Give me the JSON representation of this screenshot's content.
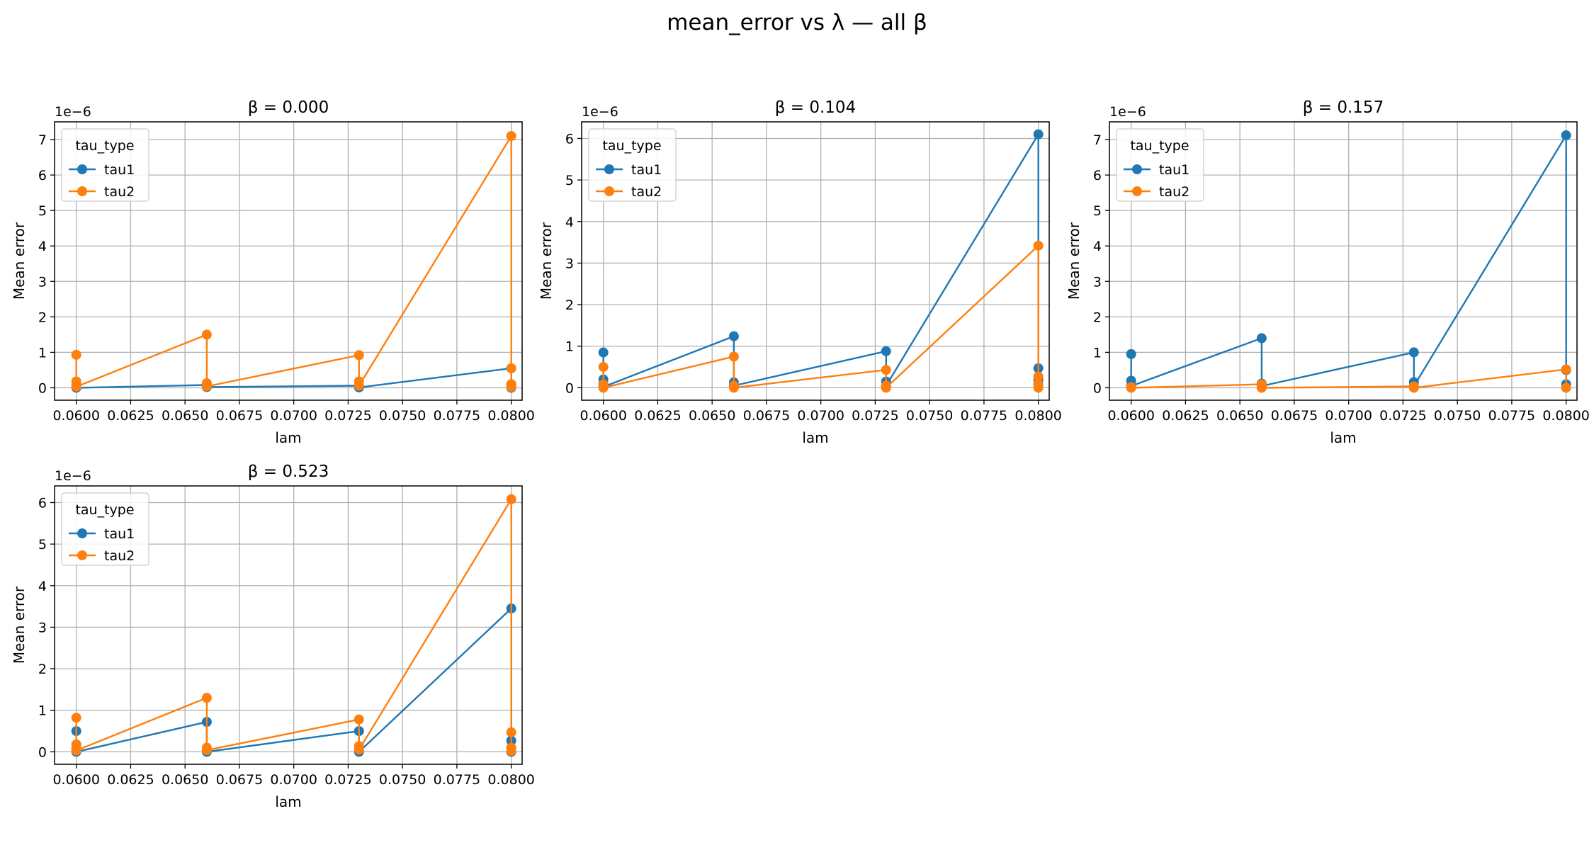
{
  "figure": {
    "title": "mean_error vs λ — all β"
  },
  "chart_data": [
    {
      "type": "line",
      "title": "β = 0.000",
      "xlabel": "lam",
      "ylabel": "Mean error",
      "offset_text": "1e−6",
      "xlim": [
        0.059,
        0.0805
      ],
      "ylim": [
        -0.35,
        7.5
      ],
      "xticks": [
        "0.0600",
        "0.0625",
        "0.0650",
        "0.0675",
        "0.0700",
        "0.0725",
        "0.0750",
        "0.0775",
        "0.0800"
      ],
      "yticks": [
        "0",
        "1",
        "2",
        "3",
        "4",
        "5",
        "6",
        "7"
      ],
      "grid": true,
      "legend": {
        "title": "tau_type",
        "placement": "top-left"
      },
      "series": [
        {
          "name": "tau1",
          "color": "#1f77b4",
          "x": [
            0.06,
            0.066,
            0.066,
            0.073,
            0.073,
            0.08,
            0.08,
            0.08
          ],
          "y": [
            0.0,
            0.08,
            0.02,
            0.06,
            0.01,
            0.55,
            0.1,
            0.0
          ]
        },
        {
          "name": "tau2",
          "color": "#ff7f0e",
          "x": [
            0.06,
            0.06,
            0.06,
            0.06,
            0.066,
            0.066,
            0.066,
            0.073,
            0.073,
            0.073,
            0.08,
            0.08,
            0.08,
            0.08
          ],
          "y": [
            0.93,
            0.18,
            0.08,
            0.03,
            1.5,
            0.13,
            0.04,
            0.92,
            0.18,
            0.06,
            7.1,
            0.55,
            0.1,
            0.02
          ]
        }
      ]
    },
    {
      "type": "line",
      "title": "β = 0.104",
      "xlabel": "lam",
      "ylabel": "Mean error",
      "offset_text": "1e−6",
      "xlim": [
        0.059,
        0.0805
      ],
      "ylim": [
        -0.3,
        6.4
      ],
      "xticks": [
        "0.0600",
        "0.0625",
        "0.0650",
        "0.0675",
        "0.0700",
        "0.0725",
        "0.0750",
        "0.0775",
        "0.0800"
      ],
      "yticks": [
        "0",
        "1",
        "2",
        "3",
        "4",
        "5",
        "6"
      ],
      "grid": true,
      "legend": {
        "title": "tau_type",
        "placement": "top-left"
      },
      "series": [
        {
          "name": "tau1",
          "color": "#1f77b4",
          "x": [
            0.06,
            0.06,
            0.06,
            0.06,
            0.066,
            0.066,
            0.066,
            0.073,
            0.073,
            0.073,
            0.08,
            0.08,
            0.08,
            0.08
          ],
          "y": [
            0.85,
            0.2,
            0.1,
            0.02,
            1.24,
            0.13,
            0.05,
            0.88,
            0.15,
            0.05,
            6.1,
            0.47,
            0.2,
            0.1
          ]
        },
        {
          "name": "tau2",
          "color": "#ff7f0e",
          "x": [
            0.06,
            0.06,
            0.06,
            0.066,
            0.066,
            0.066,
            0.073,
            0.073,
            0.073,
            0.08,
            0.08,
            0.08,
            0.08
          ],
          "y": [
            0.5,
            0.08,
            0.0,
            0.75,
            0.05,
            0.0,
            0.43,
            0.05,
            0.0,
            3.42,
            0.27,
            0.08,
            0.0
          ]
        }
      ]
    },
    {
      "type": "line",
      "title": "β = 0.157",
      "xlabel": "lam",
      "ylabel": "Mean error",
      "offset_text": "1e−6",
      "xlim": [
        0.059,
        0.0805
      ],
      "ylim": [
        -0.35,
        7.5
      ],
      "xticks": [
        "0.0600",
        "0.0625",
        "0.0650",
        "0.0675",
        "0.0700",
        "0.0725",
        "0.0750",
        "0.0775",
        "0.0800"
      ],
      "yticks": [
        "0",
        "1",
        "2",
        "3",
        "4",
        "5",
        "6",
        "7"
      ],
      "grid": true,
      "legend": {
        "title": "tau_type",
        "placement": "top-left"
      },
      "series": [
        {
          "name": "tau1",
          "color": "#1f77b4",
          "x": [
            0.06,
            0.06,
            0.06,
            0.066,
            0.066,
            0.066,
            0.073,
            0.073,
            0.073,
            0.08,
            0.08,
            0.08
          ],
          "y": [
            0.95,
            0.2,
            0.05,
            1.4,
            0.12,
            0.05,
            1.0,
            0.16,
            0.05,
            7.12,
            0.5,
            0.1
          ]
        },
        {
          "name": "tau2",
          "color": "#ff7f0e",
          "x": [
            0.06,
            0.06,
            0.066,
            0.066,
            0.073,
            0.073,
            0.08,
            0.08
          ],
          "y": [
            0.02,
            0.0,
            0.1,
            0.0,
            0.04,
            0.0,
            0.52,
            0.0
          ]
        }
      ]
    },
    {
      "type": "line",
      "title": "β = 0.523",
      "xlabel": "lam",
      "ylabel": "Mean error",
      "offset_text": "1e−6",
      "xlim": [
        0.059,
        0.0805
      ],
      "ylim": [
        -0.3,
        6.4
      ],
      "xticks": [
        "0.0600",
        "0.0625",
        "0.0650",
        "0.0675",
        "0.0700",
        "0.0725",
        "0.0750",
        "0.0775",
        "0.0800"
      ],
      "yticks": [
        "0",
        "1",
        "2",
        "3",
        "4",
        "5",
        "6"
      ],
      "grid": true,
      "legend": {
        "title": "tau_type",
        "placement": "top-left"
      },
      "series": [
        {
          "name": "tau1",
          "color": "#1f77b4",
          "x": [
            0.06,
            0.06,
            0.06,
            0.066,
            0.066,
            0.066,
            0.073,
            0.073,
            0.073,
            0.08,
            0.08,
            0.08,
            0.08
          ],
          "y": [
            0.5,
            0.08,
            0.0,
            0.72,
            0.05,
            0.0,
            0.5,
            0.06,
            0.0,
            3.45,
            0.27,
            0.1,
            0.0
          ]
        },
        {
          "name": "tau2",
          "color": "#ff7f0e",
          "x": [
            0.06,
            0.06,
            0.06,
            0.06,
            0.066,
            0.066,
            0.066,
            0.073,
            0.073,
            0.073,
            0.08,
            0.08,
            0.08,
            0.08
          ],
          "y": [
            0.82,
            0.18,
            0.08,
            0.03,
            1.3,
            0.1,
            0.04,
            0.78,
            0.14,
            0.05,
            6.08,
            0.47,
            0.1,
            0.02
          ]
        }
      ]
    }
  ]
}
